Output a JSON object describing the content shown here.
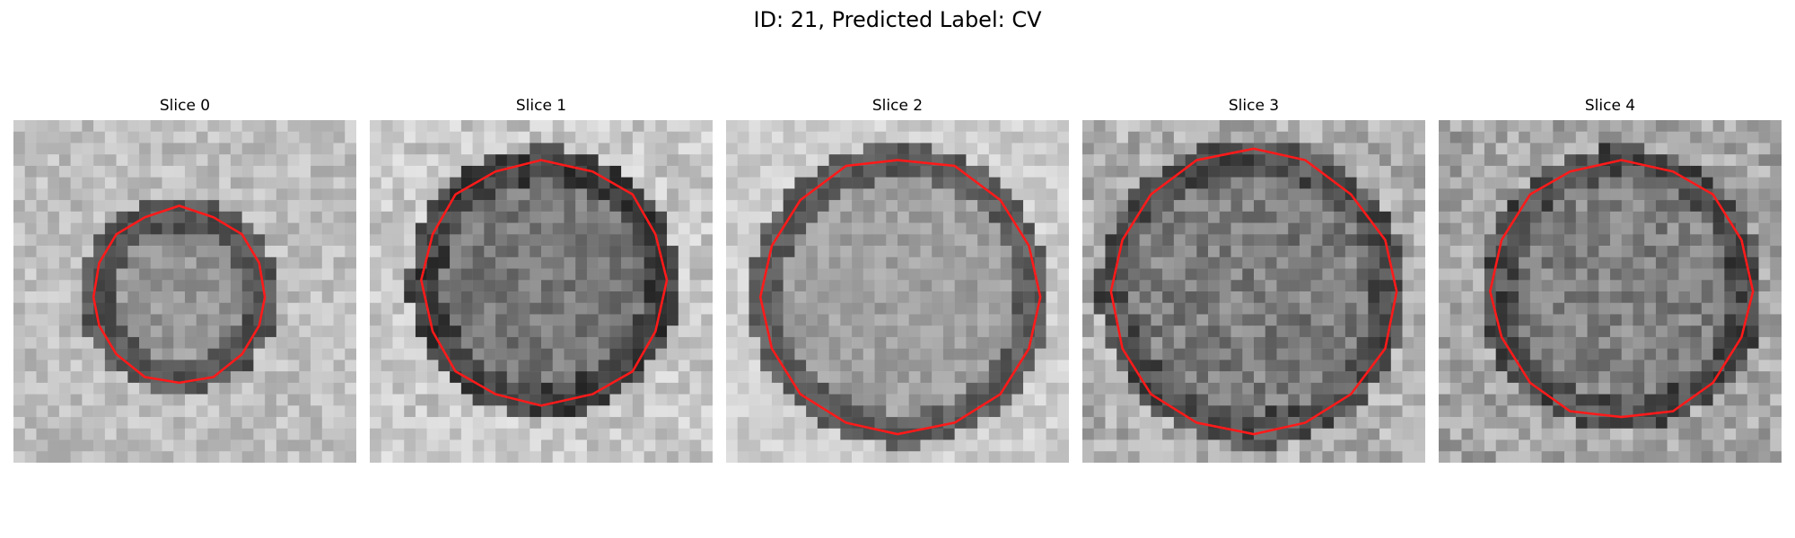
{
  "figure": {
    "title": "ID: 21, Predicted Label: CV"
  },
  "slices": [
    {
      "title": "Slice 0"
    },
    {
      "title": "Slice 1"
    },
    {
      "title": "Slice 2"
    },
    {
      "title": "Slice 3"
    },
    {
      "title": "Slice 4"
    }
  ],
  "colors": {
    "contour": "#ff1a1a",
    "colormap": "grayscale"
  }
}
